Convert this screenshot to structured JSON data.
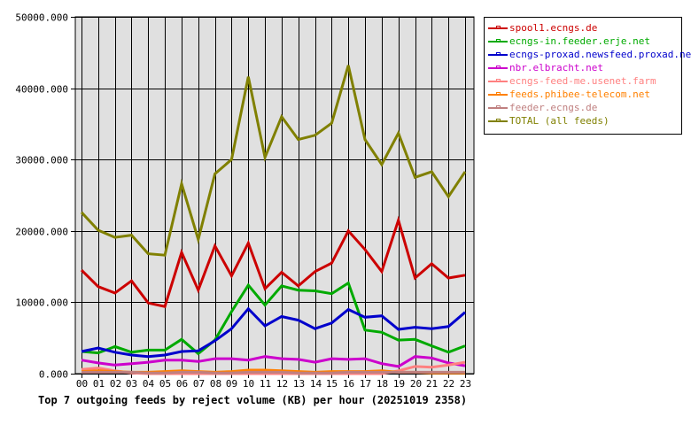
{
  "chart_data": {
    "type": "line",
    "title": "Top 7 outgoing feeds by reject volume (KB) per hour (20251019 2358)",
    "xlabel": "",
    "ylabel": "",
    "ylim": [
      0,
      50000
    ],
    "grid": true,
    "legend_position": "right",
    "y_ticks": [
      "0.000",
      "10000.000",
      "20000.000",
      "30000.000",
      "40000.000",
      "50000.000"
    ],
    "categories": [
      "00",
      "01",
      "02",
      "03",
      "04",
      "05",
      "06",
      "07",
      "08",
      "09",
      "10",
      "11",
      "12",
      "13",
      "14",
      "15",
      "16",
      "17",
      "18",
      "19",
      "20",
      "21",
      "22",
      "23"
    ],
    "series": [
      {
        "name": "spool1.ecngs.de",
        "color": "#cc0000",
        "values": [
          14500,
          12200,
          11300,
          13000,
          9900,
          9400,
          17000,
          11700,
          17900,
          13700,
          18300,
          11900,
          14200,
          12300,
          14300,
          15500,
          20000,
          17400,
          14300,
          21500,
          13400,
          15400,
          13400,
          13800
        ]
      },
      {
        "name": "ecngs-in.feeder.erje.net",
        "color": "#00aa00",
        "values": [
          3100,
          2900,
          3800,
          3000,
          3300,
          3300,
          4800,
          2800,
          4700,
          8700,
          12400,
          9600,
          12300,
          11700,
          11600,
          11200,
          12700,
          6100,
          5800,
          4700,
          4800,
          3900,
          3000,
          3900
        ]
      },
      {
        "name": "ecngs-proxad.newsfeed.proxad.net",
        "color": "#0000cc",
        "values": [
          3100,
          3600,
          3000,
          2600,
          2400,
          2600,
          3100,
          3200,
          4600,
          6300,
          9100,
          6700,
          8000,
          7500,
          6300,
          7100,
          9000,
          7900,
          8100,
          6200,
          6500,
          6300,
          6600,
          8600
        ]
      },
      {
        "name": "nbr.elbracht.net",
        "color": "#cc00cc",
        "values": [
          1900,
          1500,
          1200,
          1400,
          1600,
          1900,
          1900,
          1700,
          2100,
          2100,
          1900,
          2400,
          2100,
          2000,
          1600,
          2100,
          2000,
          2100,
          1400,
          1000,
          2400,
          2200,
          1500,
          1100
        ]
      },
      {
        "name": "ecngs-feed-me.usenet.farm",
        "color": "#ff8080",
        "values": [
          600,
          800,
          400,
          100,
          0,
          0,
          0,
          0,
          0,
          0,
          0,
          0,
          0,
          0,
          0,
          0,
          0,
          0,
          0,
          400,
          1000,
          900,
          1200,
          1600
        ]
      },
      {
        "name": "feeds.phibee-telecom.net",
        "color": "#ff8000",
        "values": [
          300,
          400,
          300,
          200,
          200,
          300,
          400,
          300,
          200,
          300,
          500,
          500,
          400,
          300,
          200,
          300,
          300,
          300,
          400,
          200,
          200,
          100,
          100,
          100
        ]
      },
      {
        "name": "feeder.ecngs.de",
        "color": "#c08080",
        "values": [
          200,
          200,
          200,
          200,
          100,
          100,
          200,
          200,
          100,
          100,
          200,
          200,
          200,
          100,
          100,
          100,
          200,
          200,
          200,
          200,
          200,
          200,
          200,
          200
        ]
      },
      {
        "name": "TOTAL (all feeds)",
        "color": "#808000",
        "values": [
          22600,
          20100,
          19100,
          19400,
          16800,
          16600,
          26600,
          18800,
          28000,
          30000,
          41600,
          30300,
          36000,
          32800,
          33400,
          35100,
          43200,
          32800,
          29300,
          33700,
          27500,
          28300,
          24800,
          28300
        ]
      }
    ]
  },
  "legend": {
    "items": [
      {
        "label": "spool1.ecngs.de",
        "color": "#cc0000"
      },
      {
        "label": "ecngs-in.feeder.erje.net",
        "color": "#00aa00"
      },
      {
        "label": "ecngs-proxad.newsfeed.proxad.net",
        "color": "#0000cc"
      },
      {
        "label": "nbr.elbracht.net",
        "color": "#cc00cc"
      },
      {
        "label": "ecngs-feed-me.usenet.farm",
        "color": "#ff8080"
      },
      {
        "label": "feeds.phibee-telecom.net",
        "color": "#ff8000"
      },
      {
        "label": "feeder.ecngs.de",
        "color": "#c08080"
      },
      {
        "label": "TOTAL (all feeds)",
        "color": "#808000"
      }
    ]
  },
  "caption": "Top 7 outgoing feeds by reject volume (KB) per hour (20251019 2358)",
  "colors": {
    "plot_background": "#e0e0e0",
    "grid": "#000000",
    "axis_text": "#000000"
  }
}
